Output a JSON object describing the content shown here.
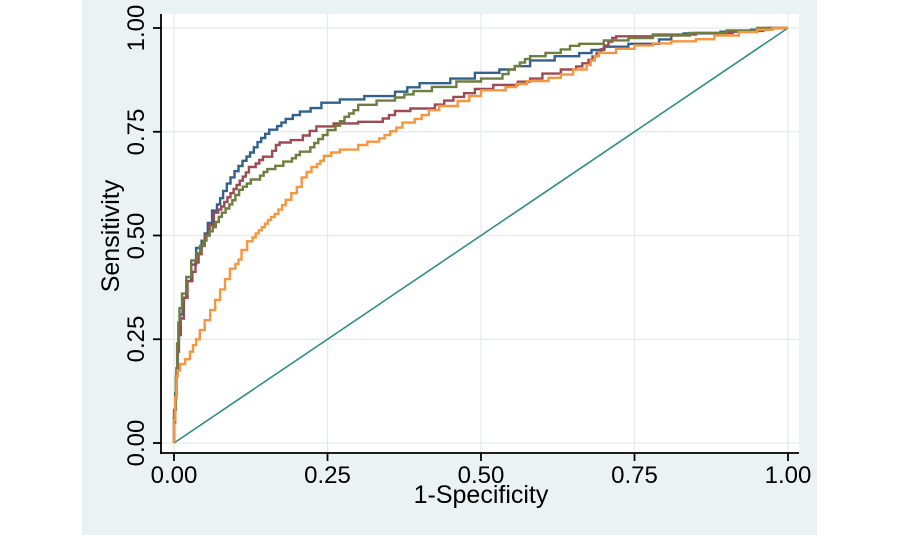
{
  "figure": {
    "outer_background_color": "#ffffff",
    "graph_background_color": "#eaf2f3",
    "plot_background_color": "#ffffff",
    "grid_color": "#e3eaeb",
    "axis_color": "#000000",
    "text_color": "#000000"
  },
  "chart_data": {
    "type": "line",
    "subtype": "roc_step_curves",
    "title": "",
    "xlabel": "1-Specificity",
    "ylabel": "Sensitivity",
    "xlim": [
      0,
      1
    ],
    "ylim": [
      0,
      1
    ],
    "grid": true,
    "legend_position": "none",
    "x_ticks": [
      {
        "label": "0.00",
        "value": 0
      },
      {
        "label": "0.25",
        "value": 0.25
      },
      {
        "label": "0.50",
        "value": 0.5
      },
      {
        "label": "0.75",
        "value": 0.75
      },
      {
        "label": "1.00",
        "value": 1
      }
    ],
    "y_ticks": [
      {
        "label": "0.00",
        "value": 0
      },
      {
        "label": "0.25",
        "value": 0.25
      },
      {
        "label": "0.50",
        "value": 0.5
      },
      {
        "label": "0.75",
        "value": 0.75
      },
      {
        "label": "1.00",
        "value": 1
      }
    ],
    "series": [
      {
        "name": "reference-diagonal",
        "color": "#2f8e84",
        "line_width": 1.6,
        "line_style": "straight",
        "points": [
          [
            0,
            0
          ],
          [
            1,
            1
          ]
        ]
      },
      {
        "name": "roc-curve-navy",
        "color": "#33618c",
        "line_width": 2.4,
        "line_style": "step",
        "points": [
          [
            0,
            0
          ],
          [
            0.002,
            0.06
          ],
          [
            0.004,
            0.12
          ],
          [
            0.006,
            0.18
          ],
          [
            0.008,
            0.23
          ],
          [
            0.01,
            0.27
          ],
          [
            0.014,
            0.31
          ],
          [
            0.02,
            0.35
          ],
          [
            0.028,
            0.39
          ],
          [
            0.036,
            0.43
          ],
          [
            0.045,
            0.47
          ],
          [
            0.055,
            0.505
          ],
          [
            0.062,
            0.53
          ],
          [
            0.07,
            0.56
          ],
          [
            0.08,
            0.59
          ],
          [
            0.092,
            0.625
          ],
          [
            0.105,
            0.655
          ],
          [
            0.118,
            0.68
          ],
          [
            0.13,
            0.7
          ],
          [
            0.142,
            0.725
          ],
          [
            0.155,
            0.745
          ],
          [
            0.168,
            0.755
          ],
          [
            0.182,
            0.772
          ],
          [
            0.205,
            0.79
          ],
          [
            0.24,
            0.807
          ],
          [
            0.27,
            0.82
          ],
          [
            0.31,
            0.828
          ],
          [
            0.36,
            0.836
          ],
          [
            0.4,
            0.857
          ],
          [
            0.45,
            0.867
          ],
          [
            0.49,
            0.878
          ],
          [
            0.53,
            0.892
          ],
          [
            0.58,
            0.908
          ],
          [
            0.62,
            0.922
          ],
          [
            0.66,
            0.932
          ],
          [
            0.7,
            0.947
          ],
          [
            0.74,
            0.955
          ],
          [
            0.79,
            0.962
          ],
          [
            0.83,
            0.983
          ],
          [
            0.89,
            0.987
          ],
          [
            0.94,
            0.991
          ],
          [
            0.97,
            0.996
          ],
          [
            1,
            1
          ]
        ]
      },
      {
        "name": "roc-curve-maroon",
        "color": "#9e4a53",
        "line_width": 2.4,
        "line_style": "step",
        "points": [
          [
            0,
            0
          ],
          [
            0.002,
            0.05
          ],
          [
            0.004,
            0.11
          ],
          [
            0.006,
            0.17
          ],
          [
            0.008,
            0.22
          ],
          [
            0.011,
            0.26
          ],
          [
            0.016,
            0.3
          ],
          [
            0.022,
            0.35
          ],
          [
            0.03,
            0.39
          ],
          [
            0.04,
            0.435
          ],
          [
            0.05,
            0.475
          ],
          [
            0.058,
            0.5
          ],
          [
            0.065,
            0.525
          ],
          [
            0.072,
            0.555
          ],
          [
            0.082,
            0.57
          ],
          [
            0.092,
            0.592
          ],
          [
            0.102,
            0.612
          ],
          [
            0.112,
            0.632
          ],
          [
            0.122,
            0.652
          ],
          [
            0.133,
            0.665
          ],
          [
            0.145,
            0.682
          ],
          [
            0.16,
            0.69
          ],
          [
            0.172,
            0.718
          ],
          [
            0.19,
            0.724
          ],
          [
            0.21,
            0.73
          ],
          [
            0.232,
            0.752
          ],
          [
            0.26,
            0.763
          ],
          [
            0.3,
            0.77
          ],
          [
            0.34,
            0.774
          ],
          [
            0.36,
            0.79
          ],
          [
            0.385,
            0.8
          ],
          [
            0.425,
            0.806
          ],
          [
            0.455,
            0.825
          ],
          [
            0.49,
            0.843
          ],
          [
            0.52,
            0.853
          ],
          [
            0.56,
            0.863
          ],
          [
            0.6,
            0.878
          ],
          [
            0.63,
            0.89
          ],
          [
            0.655,
            0.9
          ],
          [
            0.675,
            0.915
          ],
          [
            0.695,
            0.94
          ],
          [
            0.72,
            0.976
          ],
          [
            0.78,
            0.98
          ],
          [
            0.85,
            0.984
          ],
          [
            0.91,
            0.988
          ],
          [
            0.96,
            0.993
          ],
          [
            1,
            1
          ]
        ]
      },
      {
        "name": "roc-curve-olive",
        "color": "#6d7f3f",
        "line_width": 2.4,
        "line_style": "step",
        "points": [
          [
            0,
            0
          ],
          [
            0.003,
            0.08
          ],
          [
            0.005,
            0.16
          ],
          [
            0.007,
            0.24
          ],
          [
            0.009,
            0.29
          ],
          [
            0.013,
            0.325
          ],
          [
            0.02,
            0.36
          ],
          [
            0.028,
            0.4
          ],
          [
            0.037,
            0.44
          ],
          [
            0.048,
            0.475
          ],
          [
            0.058,
            0.5
          ],
          [
            0.068,
            0.52
          ],
          [
            0.078,
            0.545
          ],
          [
            0.09,
            0.565
          ],
          [
            0.1,
            0.585
          ],
          [
            0.112,
            0.61
          ],
          [
            0.125,
            0.625
          ],
          [
            0.14,
            0.635
          ],
          [
            0.152,
            0.653
          ],
          [
            0.165,
            0.66
          ],
          [
            0.178,
            0.668
          ],
          [
            0.192,
            0.678
          ],
          [
            0.205,
            0.694
          ],
          [
            0.222,
            0.702
          ],
          [
            0.235,
            0.723
          ],
          [
            0.25,
            0.742
          ],
          [
            0.263,
            0.754
          ],
          [
            0.285,
            0.786
          ],
          [
            0.3,
            0.802
          ],
          [
            0.33,
            0.815
          ],
          [
            0.36,
            0.825
          ],
          [
            0.39,
            0.84
          ],
          [
            0.42,
            0.848
          ],
          [
            0.46,
            0.858
          ],
          [
            0.5,
            0.871
          ],
          [
            0.535,
            0.878
          ],
          [
            0.555,
            0.9
          ],
          [
            0.58,
            0.925
          ],
          [
            0.605,
            0.932
          ],
          [
            0.63,
            0.94
          ],
          [
            0.66,
            0.957
          ],
          [
            0.7,
            0.962
          ],
          [
            0.74,
            0.97
          ],
          [
            0.78,
            0.976
          ],
          [
            0.84,
            0.982
          ],
          [
            0.9,
            0.988
          ],
          [
            0.95,
            0.994
          ],
          [
            1,
            1
          ]
        ]
      },
      {
        "name": "roc-curve-orange",
        "color": "#f79640",
        "line_width": 2.4,
        "line_style": "step",
        "points": [
          [
            0,
            0
          ],
          [
            0.002,
            0.055
          ],
          [
            0.004,
            0.11
          ],
          [
            0.006,
            0.16
          ],
          [
            0.01,
            0.175
          ],
          [
            0.018,
            0.19
          ],
          [
            0.026,
            0.202
          ],
          [
            0.031,
            0.22
          ],
          [
            0.036,
            0.236
          ],
          [
            0.042,
            0.25
          ],
          [
            0.05,
            0.272
          ],
          [
            0.059,
            0.296
          ],
          [
            0.067,
            0.32
          ],
          [
            0.075,
            0.345
          ],
          [
            0.083,
            0.37
          ],
          [
            0.091,
            0.395
          ],
          [
            0.1,
            0.42
          ],
          [
            0.11,
            0.442
          ],
          [
            0.119,
            0.465
          ],
          [
            0.128,
            0.486
          ],
          [
            0.138,
            0.505
          ],
          [
            0.148,
            0.52
          ],
          [
            0.158,
            0.537
          ],
          [
            0.17,
            0.552
          ],
          [
            0.182,
            0.573
          ],
          [
            0.191,
            0.586
          ],
          [
            0.2,
            0.602
          ],
          [
            0.208,
            0.617
          ],
          [
            0.216,
            0.64
          ],
          [
            0.224,
            0.653
          ],
          [
            0.233,
            0.665
          ],
          [
            0.244,
            0.68
          ],
          [
            0.256,
            0.692
          ],
          [
            0.27,
            0.7
          ],
          [
            0.3,
            0.707
          ],
          [
            0.315,
            0.718
          ],
          [
            0.334,
            0.726
          ],
          [
            0.352,
            0.742
          ],
          [
            0.372,
            0.76
          ],
          [
            0.392,
            0.772
          ],
          [
            0.415,
            0.79
          ],
          [
            0.432,
            0.802
          ],
          [
            0.462,
            0.812
          ],
          [
            0.5,
            0.836
          ],
          [
            0.54,
            0.85
          ],
          [
            0.575,
            0.865
          ],
          [
            0.61,
            0.872
          ],
          [
            0.65,
            0.888
          ],
          [
            0.672,
            0.9
          ],
          [
            0.692,
            0.932
          ],
          [
            0.72,
            0.94
          ],
          [
            0.75,
            0.95
          ],
          [
            0.78,
            0.958
          ],
          [
            0.81,
            0.963
          ],
          [
            0.85,
            0.968
          ],
          [
            0.88,
            0.973
          ],
          [
            0.92,
            0.982
          ],
          [
            0.95,
            0.99
          ],
          [
            0.975,
            0.996
          ],
          [
            1,
            1
          ]
        ]
      }
    ]
  }
}
